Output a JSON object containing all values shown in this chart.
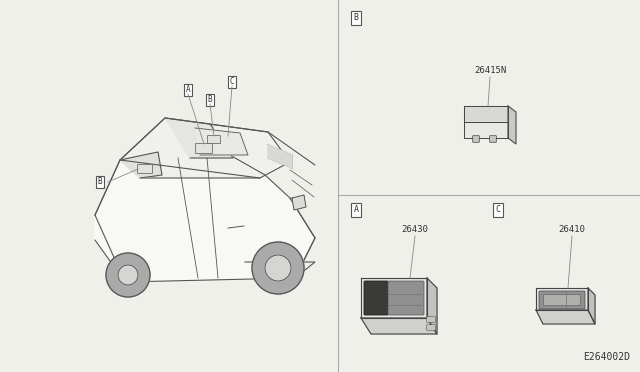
{
  "bg_color": "#f0f0eb",
  "diagram_id": "E264002D",
  "divider_color": "#aaaaaa",
  "text_color": "#333333",
  "label_box_color": "#ffffff",
  "label_border_color": "#555555",
  "line_color": "#555555",
  "parts": [
    {
      "label": "A",
      "part_no": "26430"
    },
    {
      "label": "B",
      "part_no": "26415N"
    },
    {
      "label": "C",
      "part_no": "26410"
    }
  ]
}
